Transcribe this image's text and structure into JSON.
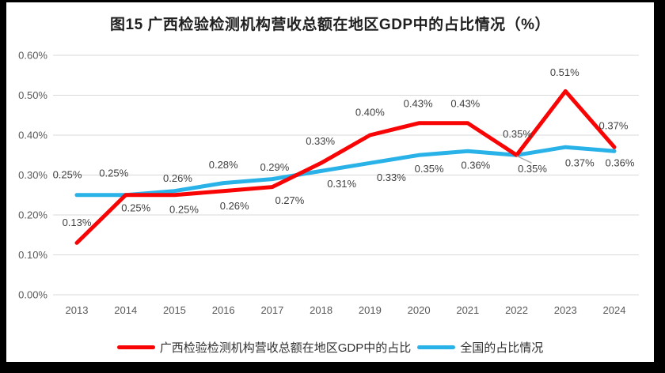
{
  "chart_data": {
    "type": "line",
    "title": "图15 广西检验检测机构营收总额在地区GDP中的占比情况（%）",
    "categories": [
      "2013",
      "2014",
      "2015",
      "2016",
      "2017",
      "2018",
      "2019",
      "2020",
      "2021",
      "2022",
      "2023",
      "2024"
    ],
    "series": [
      {
        "name": "广西检验检测机构营收总额在地区GDP中的占比",
        "color": "#F80404",
        "values": [
          0.13,
          0.25,
          0.25,
          0.26,
          0.27,
          0.33,
          0.4,
          0.43,
          0.43,
          0.35,
          0.51,
          0.37
        ],
        "label_offsets": [
          [
            0,
            -26
          ],
          [
            13,
            16
          ],
          [
            12,
            18
          ],
          [
            14,
            19
          ],
          [
            22,
            17
          ],
          [
            -1,
            -28
          ],
          [
            0,
            -29
          ],
          [
            -1,
            -25
          ],
          [
            -3,
            -25
          ],
          [
            1,
            -27
          ],
          [
            -1,
            -24
          ],
          [
            -1,
            -27
          ]
        ]
      },
      {
        "name": "全国的占比情况",
        "color": "#29B2E8",
        "values": [
          0.25,
          0.25,
          0.26,
          0.28,
          0.29,
          0.31,
          0.33,
          0.35,
          0.36,
          0.35,
          0.37,
          0.36
        ],
        "label_offsets": [
          [
            -12,
            -26
          ],
          [
            -15,
            -28
          ],
          [
            4,
            -16
          ],
          [
            0,
            -23
          ],
          [
            3,
            -15
          ],
          [
            26,
            16
          ],
          [
            27,
            18
          ],
          [
            13,
            17
          ],
          [
            10,
            18
          ],
          [
            20,
            17
          ],
          [
            18,
            20
          ],
          [
            7,
            15
          ]
        ],
        "leader_lines": [
          {
            "index": 9,
            "from": [
              0,
              1
            ],
            "to": [
              19,
              10
            ]
          }
        ]
      }
    ],
    "ylim": [
      0,
      0.6
    ],
    "ytick_step": 0.1,
    "ytick_labels": [
      "0.00%",
      "0.10%",
      "0.20%",
      "0.30%",
      "0.40%",
      "0.50%",
      "0.60%"
    ],
    "value_format": "0.00%",
    "grid": true,
    "legend_position": "bottom",
    "colors": {
      "grid": "#D9D9D9",
      "axis_text": "#595959",
      "data_label_text": "#3F3F3F",
      "leader": "#A6A6A6",
      "title_text": "#1F1F1F",
      "legend_text": "#303030",
      "frame": "#000000",
      "background": "#FFFFFF"
    }
  }
}
